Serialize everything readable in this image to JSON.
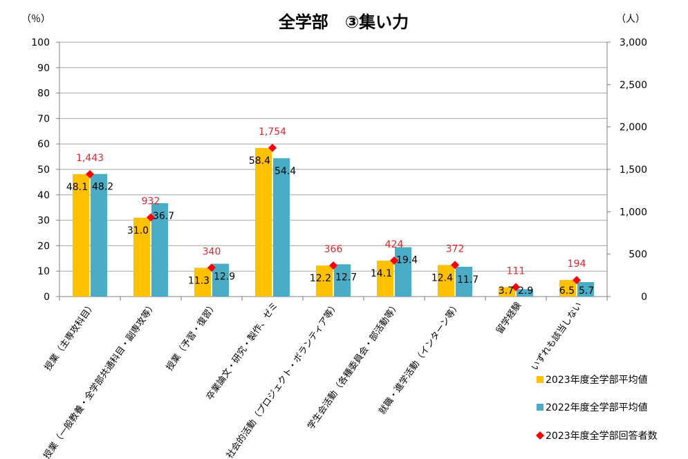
{
  "chart_data": {
    "type": "bar",
    "title": "全学部　③集い力",
    "left_unit": "（％）",
    "right_unit": "（人）",
    "ylim": [
      0,
      100
    ],
    "y_ticks": [
      "0",
      "10",
      "20",
      "30",
      "40",
      "50",
      "60",
      "70",
      "80",
      "90",
      "100"
    ],
    "y2lim": [
      0,
      3000
    ],
    "y2_ticks": [
      "0",
      "500",
      "1,000",
      "1,500",
      "2,000",
      "2,500",
      "3,000"
    ],
    "categories": [
      "授業（主専攻科目）",
      "授業（一般教養・全学部共通科目・副専攻等）",
      "授業（予習・復習）",
      "卒業論文・研究・製作、ゼミ",
      "社会的活動（プロジェクト・ボランティア等）",
      "学生会活動（各種委員会・部活動等）",
      "就職・進学活動（インターン等）",
      "留学経験",
      "いずれも該当しない"
    ],
    "series": [
      {
        "name": "2023年度全学部平均値",
        "color": "#ffc000",
        "axis": "left",
        "values": [
          48.1,
          31.0,
          11.3,
          58.4,
          12.2,
          14.1,
          12.4,
          3.7,
          6.5
        ],
        "labels": [
          "48.1",
          "31.0",
          "11.3",
          "58.4",
          "12.2",
          "14.1",
          "12.4",
          "3.7",
          "6.5"
        ]
      },
      {
        "name": "2022年度全学部平均値",
        "color": "#4bacc6",
        "axis": "left",
        "values": [
          48.2,
          36.7,
          12.9,
          54.4,
          12.7,
          19.4,
          11.7,
          2.9,
          5.7
        ],
        "labels": [
          "48.2",
          "36.7",
          "12.9",
          "54.4",
          "12.7",
          "19.4",
          "11.7",
          "2.9",
          "5.7"
        ]
      },
      {
        "name": "2023年度全学部回答者数",
        "color": "#ff0000",
        "axis": "right",
        "marker": "diamond",
        "values": [
          1443,
          932,
          340,
          1754,
          366,
          424,
          372,
          111,
          194
        ],
        "labels": [
          "1,443",
          "932",
          "340",
          "1,754",
          "366",
          "424",
          "372",
          "111",
          "194"
        ]
      }
    ],
    "grid": true,
    "legend": "bottom-right"
  }
}
